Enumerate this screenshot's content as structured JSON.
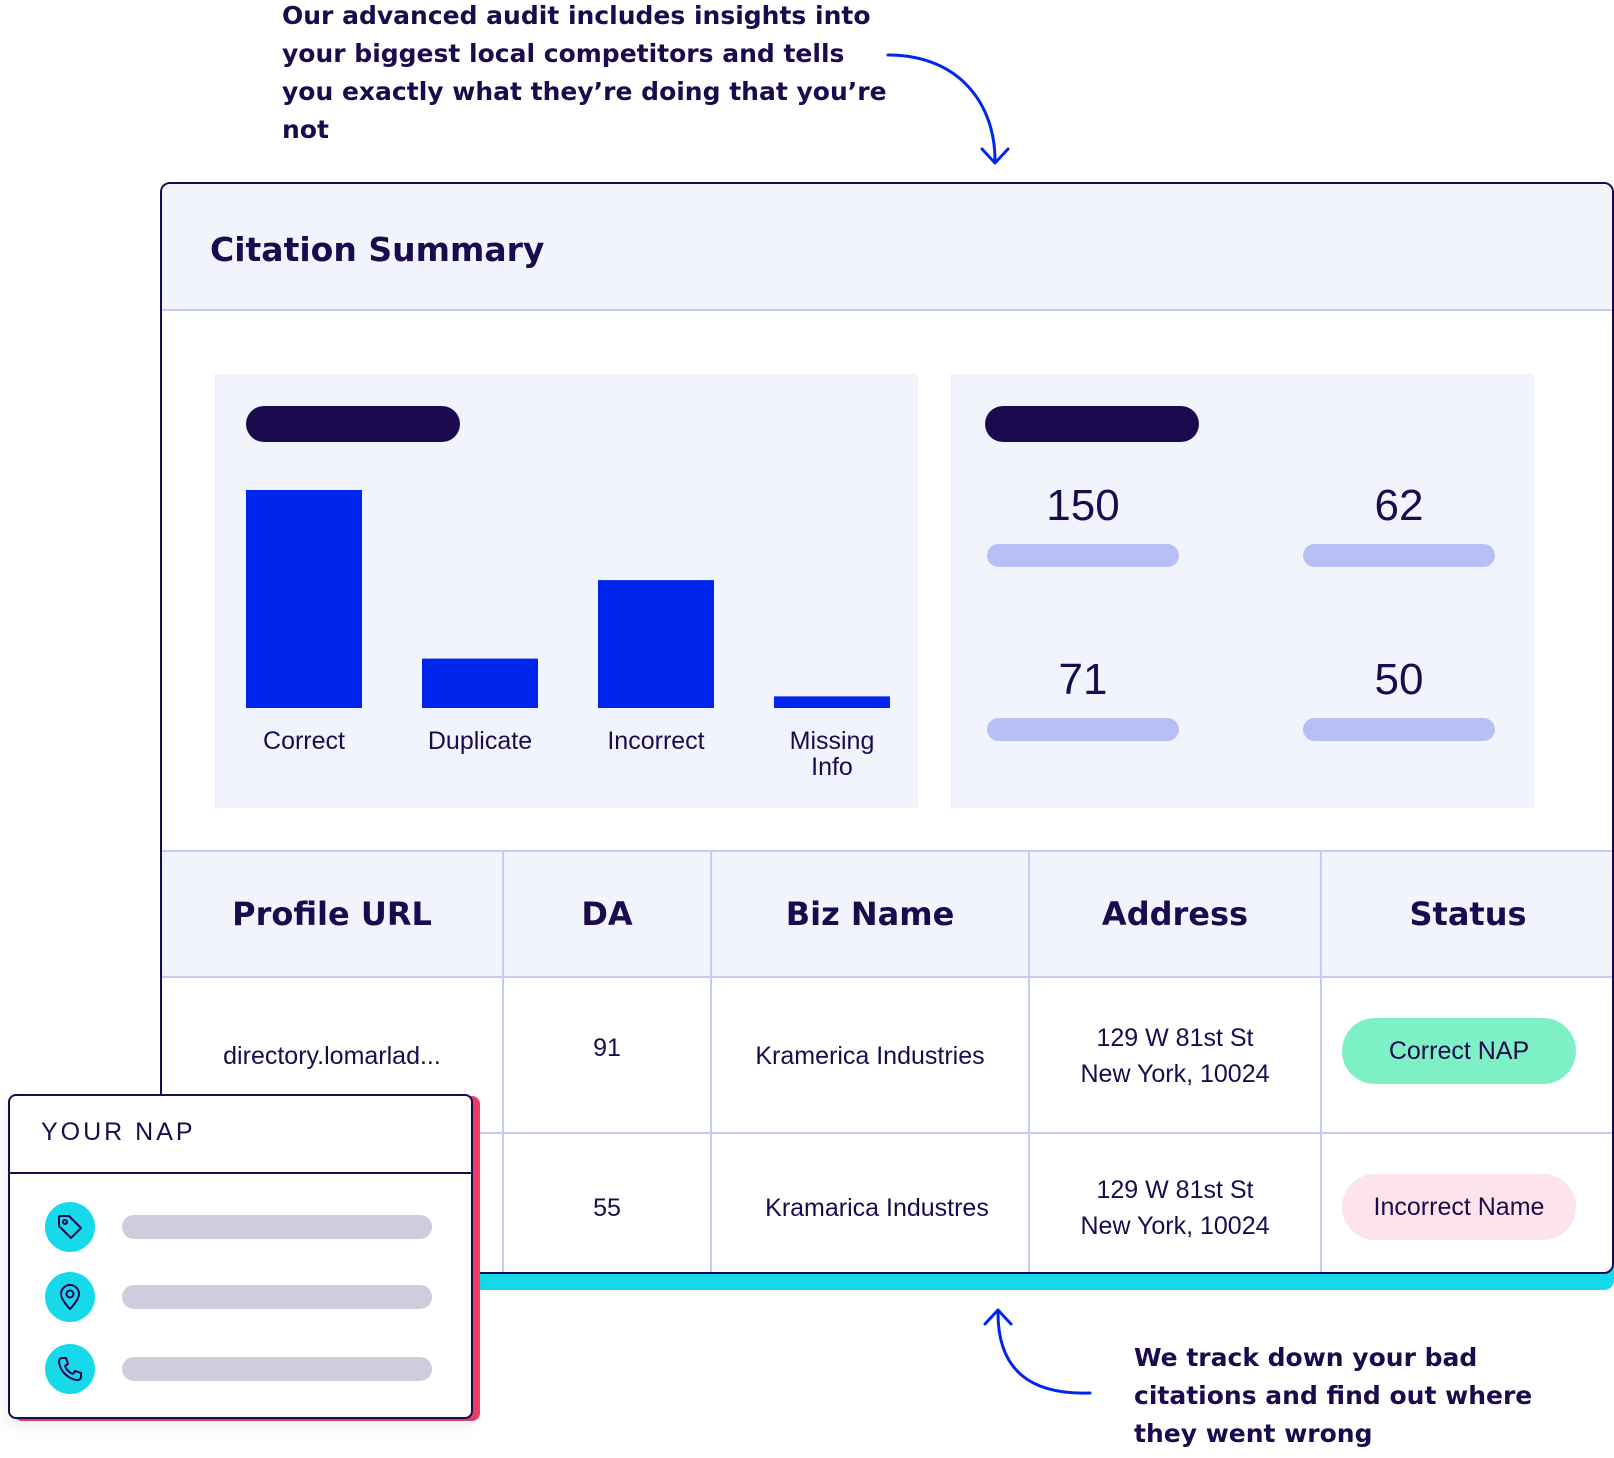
{
  "notes": {
    "top": "Our advanced audit includes insights into your biggest local competitors and tells you exactly what they’re doing that you’re not",
    "bottom": "We track down your bad citations and find out where they went wrong"
  },
  "card": {
    "title": "Citation Summary"
  },
  "chart_data": {
    "type": "bar",
    "categories": [
      "Correct",
      "Duplicate",
      "Incorrect",
      "Missing Info"
    ],
    "values": [
      150,
      34,
      88,
      8
    ],
    "ylim": [
      0,
      150
    ],
    "color": "#0026ee"
  },
  "stats": [
    {
      "value": "150"
    },
    {
      "value": "62"
    },
    {
      "value": "71"
    },
    {
      "value": "50"
    }
  ],
  "table": {
    "headers": [
      "Profile URL",
      "DA",
      "Biz Name",
      "Address",
      "Status"
    ],
    "rows": [
      {
        "url": "directory.lomarlad...",
        "da": "91",
        "name": "Kramerica Industries",
        "address_line1": "129 W 81st St",
        "address_line2": "New York, 10024",
        "status": "Correct NAP"
      },
      {
        "url": "",
        "da": "55",
        "name": "Kramarica Industres",
        "address_line1": "129 W 81st St",
        "address_line2": "New York, 10024",
        "status": "Incorrect Name"
      }
    ]
  },
  "nap": {
    "title": "YOUR NAP",
    "icons": [
      "tag-icon",
      "location-pin-icon",
      "phone-icon"
    ]
  },
  "colors": {
    "navy": "#1c0a4e",
    "blue": "#0026ee",
    "cyan": "#16d9ea",
    "pink": "#ee3e6a",
    "mint": "#7ef0c6",
    "light_bg": "#f1f4fd"
  }
}
